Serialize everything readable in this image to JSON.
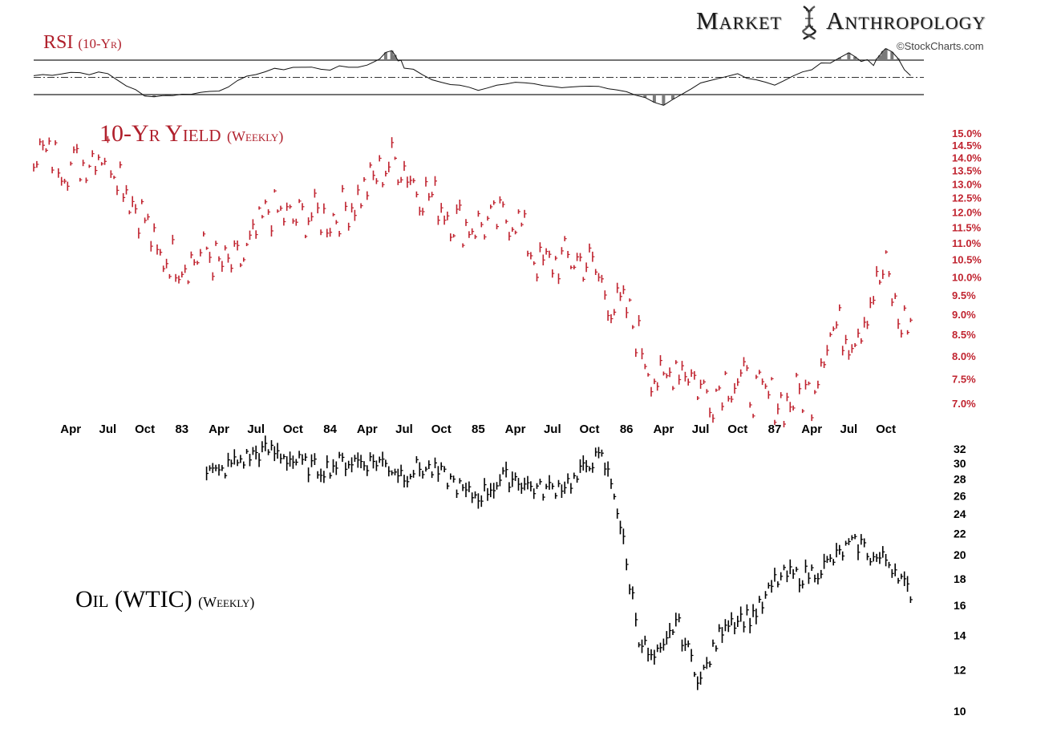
{
  "header": {
    "brand_word_1": "Market",
    "brand_word_2": "Anthropology",
    "credit": "©StockCharts.com"
  },
  "colors": {
    "yield": "#c0232f",
    "oil": "#000000",
    "rsi_line": "#111111",
    "rsi_fill": "#7a7a7a"
  },
  "chart_data": [
    {
      "type": "line",
      "title": "RSI",
      "subtitle": "(10-Yr)",
      "ylim": [
        0,
        100
      ],
      "reference_lines": [
        70,
        50,
        30
      ],
      "x": [
        "1982-01",
        "1982-04",
        "1982-07",
        "1982-10",
        "1983-01",
        "1983-04",
        "1983-07",
        "1983-10",
        "1984-01",
        "1984-04",
        "1984-06",
        "1984-07",
        "1984-10",
        "1985-01",
        "1985-04",
        "1985-07",
        "1985-10",
        "1986-01",
        "1986-04",
        "1986-07",
        "1986-10",
        "1987-01",
        "1987-04",
        "1987-07",
        "1987-09",
        "1987-10",
        "1987-12"
      ],
      "values": [
        52,
        56,
        54,
        28,
        30,
        35,
        55,
        62,
        60,
        64,
        82,
        62,
        44,
        36,
        46,
        38,
        40,
        34,
        18,
        42,
        54,
        42,
        60,
        78,
        64,
        86,
        52
      ]
    },
    {
      "type": "line",
      "title": "10-Yr Yield",
      "subtitle": "(Weekly)",
      "x_tick_labels": [
        "Apr",
        "Jul",
        "Oct",
        "83",
        "Apr",
        "Jul",
        "Oct",
        "84",
        "Apr",
        "Jul",
        "Oct",
        "85",
        "Apr",
        "Jul",
        "Oct",
        "86",
        "Apr",
        "Jul",
        "Oct",
        "87",
        "Apr",
        "Jul",
        "Oct"
      ],
      "x_tick_dates": [
        "1982-04",
        "1982-07",
        "1982-10",
        "1983-01",
        "1983-04",
        "1983-07",
        "1983-10",
        "1984-01",
        "1984-04",
        "1984-07",
        "1984-10",
        "1985-01",
        "1985-04",
        "1985-07",
        "1985-10",
        "1986-01",
        "1986-04",
        "1986-07",
        "1986-10",
        "1987-01",
        "1987-04",
        "1987-07",
        "1987-10"
      ],
      "y_tick_labels": [
        "15.0%",
        "14.5%",
        "14.0%",
        "13.5%",
        "13.0%",
        "12.5%",
        "12.0%",
        "11.5%",
        "11.0%",
        "10.5%",
        "10.0%",
        "9.5%",
        "9.0%",
        "8.5%",
        "8.0%",
        "7.5%",
        "7.0%"
      ],
      "y_tick_values": [
        15.0,
        14.5,
        14.0,
        13.5,
        13.0,
        12.5,
        12.0,
        11.5,
        11.0,
        10.5,
        10.0,
        9.5,
        9.0,
        8.5,
        8.0,
        7.5,
        7.0
      ],
      "scale": "log",
      "ylim": [
        6.95,
        15.1
      ],
      "x": [
        "1982-01",
        "1982-02",
        "1982-03",
        "1982-04",
        "1982-05",
        "1982-06",
        "1982-07",
        "1982-08",
        "1982-09",
        "1982-10",
        "1982-11",
        "1982-12",
        "1983-01",
        "1983-02",
        "1983-03",
        "1983-04",
        "1983-05",
        "1983-06",
        "1983-07",
        "1983-08",
        "1983-09",
        "1983-10",
        "1983-11",
        "1983-12",
        "1984-01",
        "1984-02",
        "1984-03",
        "1984-04",
        "1984-05",
        "1984-06",
        "1984-07",
        "1984-08",
        "1984-09",
        "1984-10",
        "1984-11",
        "1984-12",
        "1985-01",
        "1985-02",
        "1985-03",
        "1985-04",
        "1985-05",
        "1985-06",
        "1985-07",
        "1985-08",
        "1985-09",
        "1985-10",
        "1985-11",
        "1985-12",
        "1986-01",
        "1986-02",
        "1986-03",
        "1986-04",
        "1986-05",
        "1986-06",
        "1986-07",
        "1986-08",
        "1986-09",
        "1986-10",
        "1986-11",
        "1986-12",
        "1987-01",
        "1987-02",
        "1987-03",
        "1987-04",
        "1987-05",
        "1987-06",
        "1987-07",
        "1987-08",
        "1987-09",
        "1987-10",
        "1987-11",
        "1987-12"
      ],
      "values": [
        14.5,
        14.0,
        14.0,
        13.7,
        13.8,
        14.3,
        14.2,
        13.5,
        12.4,
        11.8,
        10.5,
        10.6,
        10.5,
        10.5,
        10.8,
        10.3,
        10.3,
        10.5,
        11.2,
        12.1,
        11.9,
        11.7,
        11.9,
        11.9,
        11.8,
        12.1,
        12.4,
        12.9,
        13.4,
        13.9,
        13.7,
        12.9,
        12.6,
        12.3,
        11.8,
        11.6,
        11.6,
        11.6,
        11.8,
        11.9,
        11.0,
        10.3,
        10.4,
        10.5,
        10.5,
        10.4,
        9.8,
        9.2,
        9.1,
        8.4,
        7.7,
        7.3,
        7.9,
        7.7,
        7.3,
        7.2,
        7.5,
        7.5,
        7.3,
        7.1,
        7.1,
        7.0,
        7.2,
        7.2,
        8.3,
        8.7,
        8.5,
        8.8,
        9.6,
        10.2,
        8.8,
        8.85
      ]
    },
    {
      "type": "line",
      "title": "Oil (WTIC)",
      "subtitle": "(Weekly)",
      "y_tick_labels": [
        "32",
        "30",
        "28",
        "26",
        "24",
        "22",
        "20",
        "18",
        "16",
        "14",
        "12",
        "10"
      ],
      "y_tick_values": [
        32,
        30,
        28,
        26,
        24,
        22,
        20,
        18,
        16,
        14,
        12,
        10
      ],
      "scale": "log",
      "ylim": [
        10,
        32.5
      ],
      "x": [
        "1983-03",
        "1983-04",
        "1983-05",
        "1983-06",
        "1983-07",
        "1983-08",
        "1983-09",
        "1983-10",
        "1983-11",
        "1983-12",
        "1984-01",
        "1984-02",
        "1984-03",
        "1984-04",
        "1984-05",
        "1984-06",
        "1984-07",
        "1984-08",
        "1984-09",
        "1984-10",
        "1984-11",
        "1984-12",
        "1985-01",
        "1985-02",
        "1985-03",
        "1985-04",
        "1985-05",
        "1985-06",
        "1985-07",
        "1985-08",
        "1985-09",
        "1985-10",
        "1985-11",
        "1985-12",
        "1986-01",
        "1986-02",
        "1986-03",
        "1986-04",
        "1986-05",
        "1986-06",
        "1986-07",
        "1986-08",
        "1986-09",
        "1986-10",
        "1986-11",
        "1986-12",
        "1987-01",
        "1987-02",
        "1987-03",
        "1987-04",
        "1987-05",
        "1987-06",
        "1987-07",
        "1987-08",
        "1987-09",
        "1987-10",
        "1987-11",
        "1987-12"
      ],
      "values": [
        29.2,
        28.6,
        30.0,
        30.6,
        31.4,
        31.8,
        31.3,
        30.4,
        29.8,
        29.3,
        29.6,
        30.2,
        30.4,
        30.2,
        30.4,
        29.4,
        28.6,
        29.4,
        29.3,
        28.5,
        27.6,
        26.2,
        26.0,
        27.0,
        28.1,
        28.2,
        27.2,
        26.7,
        26.9,
        27.5,
        28.0,
        30.4,
        30.6,
        26.5,
        19.0,
        14.0,
        12.5,
        13.0,
        15.0,
        13.0,
        11.5,
        13.0,
        15.0,
        15.1,
        15.2,
        16.0,
        17.8,
        18.3,
        18.2,
        18.5,
        19.0,
        19.8,
        20.8,
        21.0,
        19.7,
        19.6,
        18.6,
        16.4
      ]
    }
  ]
}
